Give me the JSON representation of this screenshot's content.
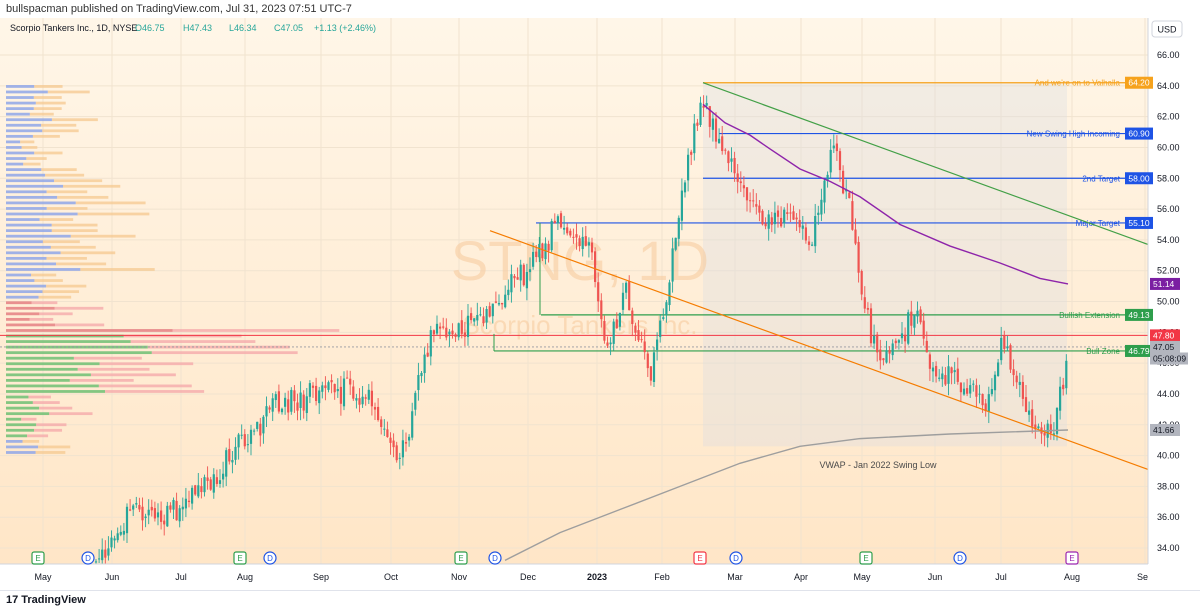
{
  "header": {
    "published": "bullspacman published on TradingView.com, Jul 31, 2023 07:51 UTC-7"
  },
  "footer": {
    "logo_mark": "17",
    "logo_text": "TradingView"
  },
  "chart_data": {
    "type": "candlestick",
    "symbol_line": {
      "name": "Scorpio Tankers Inc., 1D, NYSE",
      "open": "O46.75",
      "high": "H47.43",
      "low": "L46.34",
      "close": "C47.05",
      "change": "+1.13 (+2.46%)"
    },
    "watermark": {
      "ticker": "STNG, 1D",
      "name": "Scorpio Tankers Inc."
    },
    "currency": "USD",
    "y_ticks": [
      "66.00",
      "64.00",
      "62.00",
      "60.00",
      "58.00",
      "56.00",
      "54.00",
      "52.00",
      "50.00",
      "48.00",
      "46.00",
      "44.00",
      "42.00",
      "40.00",
      "38.00",
      "36.00",
      "34.00"
    ],
    "ylim": [
      33,
      68
    ],
    "x_labels": [
      "May",
      "Jun",
      "Jul",
      "Aug",
      "Sep",
      "Oct",
      "Nov",
      "Dec",
      "2023",
      "Feb",
      "Mar",
      "Apr",
      "May",
      "Jun",
      "Jul",
      "Aug",
      "Sep"
    ],
    "horizontal_levels": [
      {
        "label": "And we're on to Valhalla",
        "value": 64.2,
        "price": "64.20",
        "color": "#f6a21c",
        "start": "Feb"
      },
      {
        "label": "New Swing High Incoming",
        "value": 60.9,
        "price": "60.90",
        "color": "#1e53e5",
        "start": "Mar"
      },
      {
        "label": "2nd Target",
        "value": 58.0,
        "price": "58.00",
        "color": "#1e53e5",
        "start": "Feb"
      },
      {
        "label": "Major Target",
        "value": 55.1,
        "price": "55.10",
        "color": "#1e53e5",
        "start": "Nov"
      },
      {
        "label": "Bullish Extension",
        "value": 49.13,
        "price": "49.13",
        "color": "#2e9e4c",
        "start": "Nov"
      },
      {
        "label": "Bull Zone",
        "value": 46.79,
        "price": "46.79",
        "color": "#2e9e4c",
        "start": "Nov"
      }
    ],
    "price_labels": [
      {
        "text": "51.14",
        "value": 51.14,
        "color": "#7b1fa2"
      },
      {
        "text": "47.80",
        "value": 47.8,
        "color": "#f23645"
      },
      {
        "text": "47.05",
        "value": 47.05,
        "color": "#b2b5be"
      },
      {
        "text": "05:08:09",
        "value": 46.3,
        "color": "#b2b5be"
      },
      {
        "text": "41.66",
        "value": 41.66,
        "color": "#b2b5be"
      }
    ],
    "annotations": [
      {
        "text": "VWAP - Jan 2022 Swing Low"
      }
    ],
    "events_row": [
      {
        "letter": "E",
        "type": "earnings",
        "color": "#2e9e4c"
      },
      {
        "letter": "D",
        "type": "dividend",
        "color": "#1e53e5"
      },
      {
        "letter": "E",
        "type": "earnings",
        "color": "#2e9e4c"
      },
      {
        "letter": "D",
        "type": "dividend",
        "color": "#1e53e5"
      },
      {
        "letter": "E",
        "type": "earnings",
        "color": "#2e9e4c"
      },
      {
        "letter": "D",
        "type": "dividend",
        "color": "#1e53e5"
      },
      {
        "letter": "E",
        "type": "earnings",
        "color": "#f23645"
      },
      {
        "letter": "D",
        "type": "dividend",
        "color": "#1e53e5"
      },
      {
        "letter": "E",
        "type": "earnings",
        "color": "#2e9e4c"
      },
      {
        "letter": "D",
        "type": "dividend",
        "color": "#1e53e5"
      },
      {
        "letter": "E",
        "type": "earnings",
        "color": "#9c27b0"
      }
    ],
    "colors": {
      "up": "#26a69a",
      "down": "#ef5350",
      "bg_top": "#fff3e0",
      "bg_bottom": "#ffe9cc",
      "vwap": "#9e9e9e",
      "ma": "#8e24aa",
      "channel_upper": "#43a047",
      "channel_lower": "#f57c00"
    }
  }
}
